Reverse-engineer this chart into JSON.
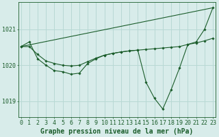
{
  "background_color": "#d8ecea",
  "grid_color": "#b8d8d4",
  "line_color": "#1a5c2a",
  "marker_color": "#1a5c2a",
  "xlabel": "Graphe pression niveau de la mer (hPa)",
  "xlabel_fontsize": 7,
  "tick_fontsize": 6,
  "ylabel_ticks": [
    1019,
    1020,
    1021
  ],
  "xlim": [
    -0.3,
    23.3
  ],
  "ylim": [
    1018.55,
    1021.75
  ],
  "series1_x": [
    0,
    1,
    2,
    3,
    4,
    5,
    6,
    7,
    8,
    9,
    10,
    11,
    12,
    13,
    14,
    15,
    16,
    17,
    18,
    19,
    20,
    21,
    22,
    23
  ],
  "series1_y": [
    1020.52,
    1020.65,
    1020.18,
    1020.0,
    1019.85,
    1019.82,
    1019.75,
    1019.78,
    1020.05,
    1020.18,
    1020.28,
    1020.33,
    1020.37,
    1020.4,
    1020.42,
    1019.52,
    1019.08,
    1018.78,
    1019.32,
    1019.92,
    1020.58,
    1020.65,
    1021.0,
    1021.6
  ],
  "series2_x": [
    0,
    1,
    2,
    3,
    4,
    5,
    6,
    7,
    8,
    9,
    10,
    11,
    12,
    13,
    14,
    15,
    16,
    17,
    18,
    19,
    20,
    21,
    22,
    23
  ],
  "series2_y": [
    1020.52,
    1020.52,
    1020.3,
    1020.12,
    1020.05,
    1020.0,
    1019.98,
    1020.0,
    1020.1,
    1020.2,
    1020.28,
    1020.33,
    1020.37,
    1020.4,
    1020.42,
    1020.44,
    1020.46,
    1020.48,
    1020.5,
    1020.52,
    1020.58,
    1020.62,
    1020.68,
    1020.75
  ],
  "series3_x": [
    0,
    23
  ],
  "series3_y": [
    1020.52,
    1021.6
  ]
}
